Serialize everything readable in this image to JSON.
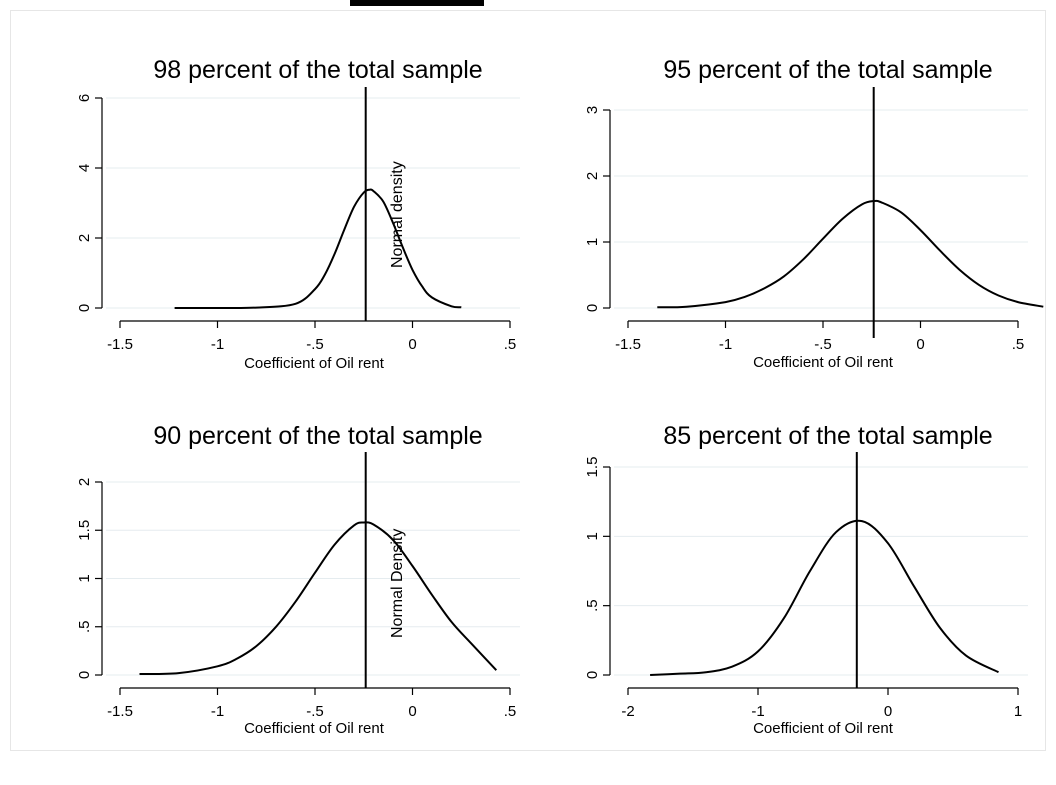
{
  "chart_data": [
    {
      "type": "line",
      "title": "98 percent of the total sample",
      "xlabel": "Coefficient of Oil rent",
      "ylabel": "",
      "xlim": [
        -1.5,
        0.5
      ],
      "ylim": [
        0,
        6
      ],
      "xticks": [
        -1.5,
        -1,
        -0.5,
        0,
        0.5
      ],
      "xtick_labels": [
        "-1.5",
        "-1",
        "-.5",
        "0",
        ".5"
      ],
      "yticks": [
        0,
        2,
        4,
        6
      ],
      "ytick_labels": [
        "0",
        "2",
        "4",
        "6"
      ],
      "grid": true,
      "vline_x": -0.24,
      "annotation": "Normal density",
      "series": [
        {
          "x": [
            -1.22,
            -1.0,
            -0.8,
            -0.6,
            -0.5,
            -0.45,
            -0.4,
            -0.35,
            -0.3,
            -0.25,
            -0.22,
            -0.2,
            -0.15,
            -0.1,
            -0.05,
            0.0,
            0.05,
            0.1,
            0.2,
            0.25
          ],
          "values": [
            0,
            0,
            0.01,
            0.12,
            0.54,
            0.95,
            1.54,
            2.24,
            2.89,
            3.3,
            3.38,
            3.34,
            3.04,
            2.43,
            1.73,
            1.09,
            0.61,
            0.3,
            0.05,
            0.02
          ]
        }
      ]
    },
    {
      "type": "line",
      "title": "95 percent of the total sample",
      "xlabel": "Coefficient of Oil rent",
      "ylabel": "",
      "xlim": [
        -1.5,
        0.5
      ],
      "ylim": [
        0,
        3
      ],
      "xticks": [
        -1.5,
        -1,
        -0.5,
        0,
        0.5
      ],
      "xtick_labels": [
        "-1.5",
        "-1",
        "-.5",
        "0",
        ".5"
      ],
      "yticks": [
        0,
        1,
        2,
        3
      ],
      "ytick_labels": [
        "0",
        "1",
        "2",
        "3"
      ],
      "grid": true,
      "vline_x": -0.24,
      "series": [
        {
          "x": [
            -1.35,
            -1.2,
            -1.0,
            -0.9,
            -0.8,
            -0.7,
            -0.6,
            -0.5,
            -0.4,
            -0.3,
            -0.24,
            -0.2,
            -0.1,
            0.0,
            0.1,
            0.2,
            0.3,
            0.4,
            0.5,
            0.63
          ],
          "values": [
            0.01,
            0.02,
            0.09,
            0.17,
            0.3,
            0.48,
            0.74,
            1.05,
            1.35,
            1.57,
            1.62,
            1.6,
            1.45,
            1.18,
            0.87,
            0.58,
            0.35,
            0.19,
            0.09,
            0.02
          ]
        }
      ]
    },
    {
      "type": "line",
      "title": "90 percent of the total sample",
      "xlabel": "Coefficient of Oil rent",
      "ylabel": "",
      "xlim": [
        -1.5,
        0.5
      ],
      "ylim": [
        0,
        2
      ],
      "xticks": [
        -1.5,
        -1,
        -0.5,
        0,
        0.5
      ],
      "xtick_labels": [
        "-1.5",
        "-1",
        "-.5",
        "0",
        ".5"
      ],
      "yticks": [
        0,
        0.5,
        1,
        1.5,
        2
      ],
      "ytick_labels": [
        "0",
        ".5",
        "1",
        "1.5",
        "2"
      ],
      "grid": true,
      "vline_x": -0.24,
      "annotation": "Normal Density",
      "series": [
        {
          "x": [
            -1.4,
            -1.2,
            -1.0,
            -0.9,
            -0.8,
            -0.7,
            -0.6,
            -0.5,
            -0.4,
            -0.3,
            -0.25,
            -0.2,
            -0.1,
            0.0,
            0.1,
            0.2,
            0.3,
            0.43
          ],
          "values": [
            0.01,
            0.02,
            0.09,
            0.17,
            0.3,
            0.5,
            0.76,
            1.06,
            1.35,
            1.55,
            1.58,
            1.56,
            1.4,
            1.13,
            0.83,
            0.55,
            0.33,
            0.05
          ]
        }
      ]
    },
    {
      "type": "line",
      "title": "85 percent of the total sample",
      "xlabel": "Coefficient of Oil rent",
      "ylabel": "",
      "xlim": [
        -2,
        1
      ],
      "ylim": [
        0,
        1.5
      ],
      "xticks": [
        -2,
        -1,
        0,
        1
      ],
      "xtick_labels": [
        "-2",
        "-1",
        "0",
        "1"
      ],
      "yticks": [
        0,
        0.5,
        1,
        1.5
      ],
      "ytick_labels": [
        "0",
        ".5",
        "1",
        "1.5"
      ],
      "grid": true,
      "vline_x": -0.24,
      "series": [
        {
          "x": [
            -1.83,
            -1.6,
            -1.4,
            -1.2,
            -1.0,
            -0.8,
            -0.6,
            -0.4,
            -0.2,
            0.0,
            0.2,
            0.4,
            0.6,
            0.85
          ],
          "values": [
            0.0,
            0.01,
            0.02,
            0.06,
            0.17,
            0.41,
            0.75,
            1.03,
            1.11,
            0.95,
            0.64,
            0.34,
            0.14,
            0.02
          ]
        }
      ]
    }
  ]
}
